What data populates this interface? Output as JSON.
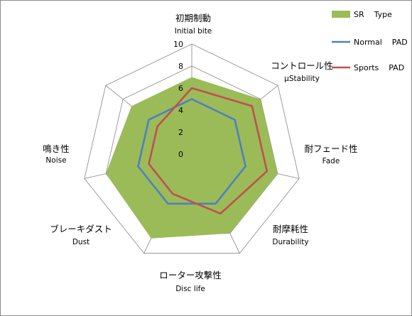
{
  "chart_data": {
    "type": "radar",
    "axes": [
      {
        "label_jp": "初期制動",
        "label_en": "Initial bite"
      },
      {
        "label_jp": "コントロール性",
        "label_en": "µStability"
      },
      {
        "label_jp": "耐フェード性",
        "label_en": "Fade"
      },
      {
        "label_jp": "耐摩耗性",
        "label_en": "Durability"
      },
      {
        "label_jp": "ローター攻撃性",
        "label_en": "Disc life"
      },
      {
        "label_jp": "ブレーキダスト",
        "label_en": "Dust"
      },
      {
        "label_jp": "鳴き性",
        "label_en": "Noise"
      }
    ],
    "ticks": [
      "0",
      "2",
      "4",
      "6",
      "8",
      "10"
    ],
    "rmax": 10,
    "grid": true,
    "legend_position": "top-right",
    "series": [
      {
        "name": "SR    Type",
        "color": "#9bbb59",
        "style": "fill",
        "values": [
          7,
          8,
          8,
          8,
          8.5,
          8,
          7
        ]
      },
      {
        "name": "Normal    PAD",
        "color": "#4f81bd",
        "style": "line",
        "values": [
          5,
          5,
          5,
          5,
          5,
          5,
          5
        ]
      },
      {
        "name": "Sports    PAD",
        "color": "#c0504d",
        "style": "line",
        "values": [
          6,
          7,
          7,
          6,
          4,
          4,
          4
        ]
      }
    ]
  }
}
